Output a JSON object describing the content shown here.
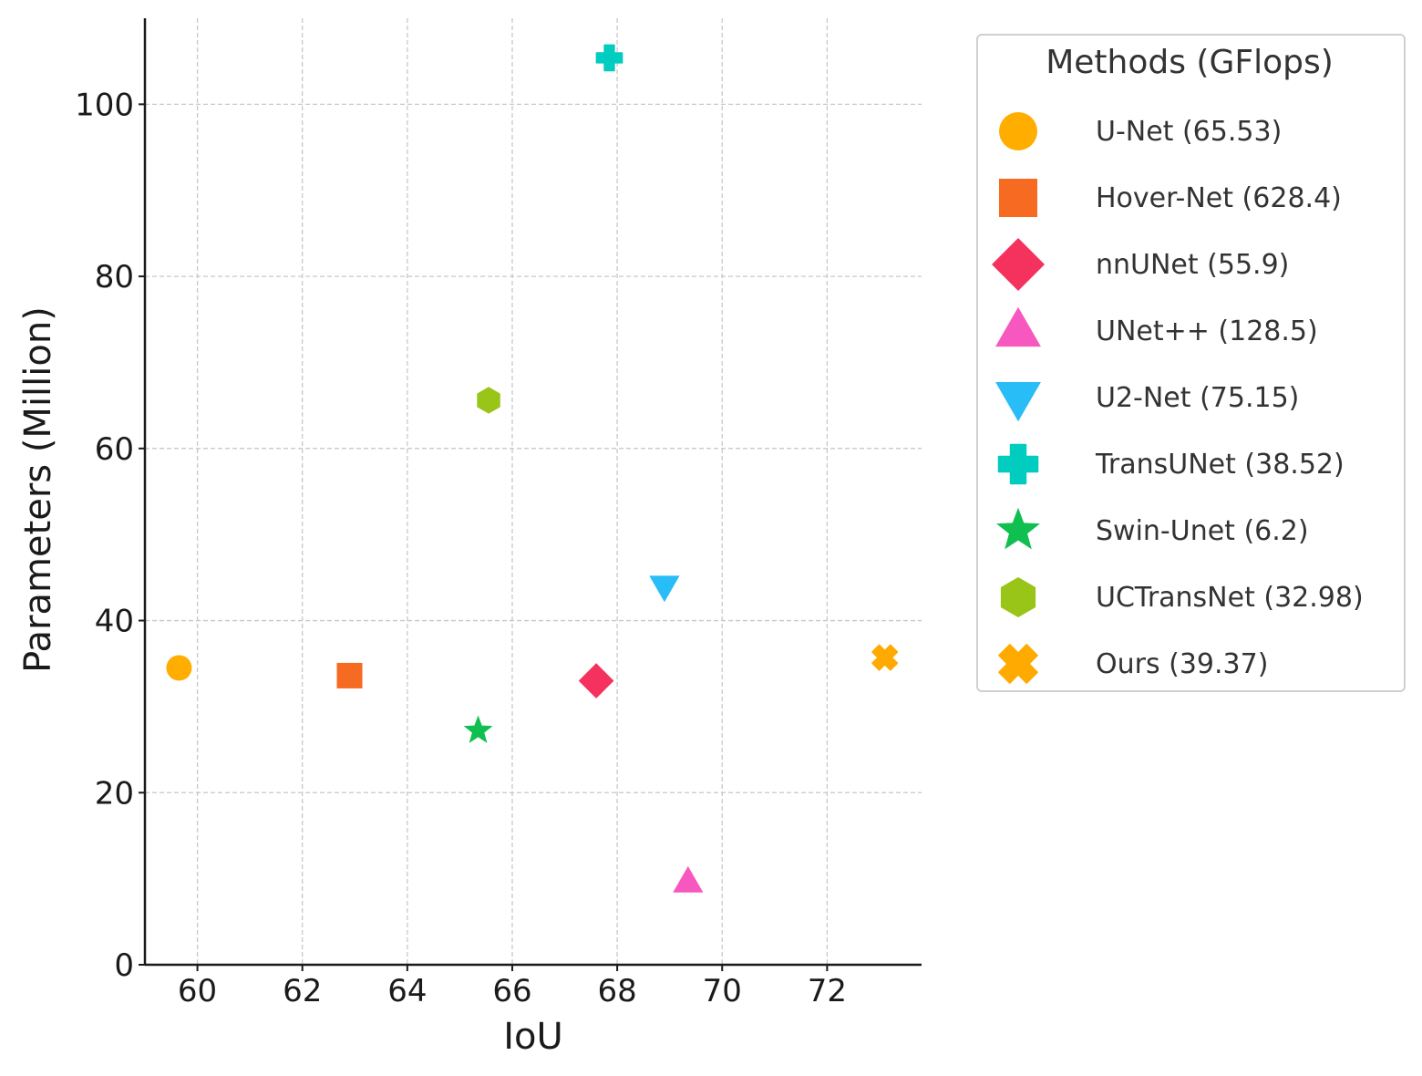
{
  "chart_data": {
    "type": "scatter",
    "xlabel": "IoU",
    "ylabel": "Parameters (Million)",
    "xlim": [
      59,
      73.8
    ],
    "ylim": [
      0,
      110
    ],
    "xticks": [
      60,
      62,
      64,
      66,
      68,
      70,
      72
    ],
    "yticks": [
      0,
      20,
      40,
      60,
      80,
      100
    ],
    "grid": true,
    "legend": {
      "title": "Methods (GFlops)",
      "placement": "outside-right"
    },
    "series": [
      {
        "name": "U-Net (65.53)",
        "marker": "circle",
        "color": "#FFAE00",
        "x": 59.65,
        "y": 34.5
      },
      {
        "name": "Hover-Net (628.4)",
        "marker": "square",
        "color": "#F76A22",
        "x": 62.9,
        "y": 33.6
      },
      {
        "name": "nnUNet (55.9)",
        "marker": "diamond",
        "color": "#F5315E",
        "x": 67.6,
        "y": 33.0
      },
      {
        "name": "UNet++ (128.5)",
        "marker": "triangle-up",
        "color": "#F758C0",
        "x": 69.35,
        "y": 9.6
      },
      {
        "name": "U2-Net (75.15)",
        "marker": "triangle-down",
        "color": "#29BDF7",
        "x": 68.9,
        "y": 44.0
      },
      {
        "name": "TransUNet (38.52)",
        "marker": "plus",
        "color": "#00CCC0",
        "x": 67.85,
        "y": 105.4
      },
      {
        "name": "Swin-Unet (6.2)",
        "marker": "star",
        "color": "#0FBF4F",
        "x": 65.35,
        "y": 27.2
      },
      {
        "name": "UCTransNet (32.98)",
        "marker": "hexagon",
        "color": "#99C418",
        "x": 65.55,
        "y": 65.6
      },
      {
        "name": "Ours (39.37)",
        "marker": "x",
        "color": "#FFAA00",
        "x": 73.1,
        "y": 35.7
      }
    ]
  }
}
